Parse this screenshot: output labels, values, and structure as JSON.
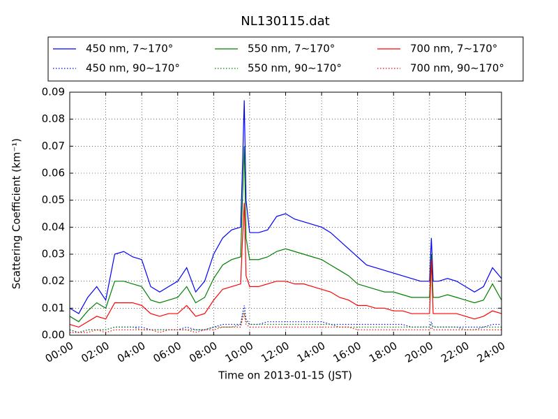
{
  "chart_data": {
    "type": "line",
    "title": "NL130115.dat",
    "x_label": "Time on 2013-01-15 (JST)",
    "y_label": "Scattering Coefficient (km⁻¹)",
    "x": [
      0,
      0.5,
      1,
      1.5,
      2,
      2.5,
      3,
      3.5,
      4,
      4.5,
      5,
      5.5,
      6,
      6.5,
      7,
      7.5,
      8,
      8.5,
      9,
      9.5,
      9.6,
      9.7,
      9.8,
      10,
      10.5,
      11,
      11.5,
      12,
      12.5,
      13,
      13.5,
      14,
      14.5,
      15,
      15.5,
      16,
      16.5,
      17,
      17.5,
      18,
      18.5,
      19,
      19.5,
      20,
      20.1,
      20.2,
      20.5,
      21,
      21.5,
      22,
      22.5,
      23,
      23.5,
      24
    ],
    "xlim": [
      0,
      24
    ],
    "xticks": [
      {
        "value": 0,
        "label": "00:00"
      },
      {
        "value": 2,
        "label": "02:00"
      },
      {
        "value": 4,
        "label": "04:00"
      },
      {
        "value": 6,
        "label": "06:00"
      },
      {
        "value": 8,
        "label": "08:00"
      },
      {
        "value": 10,
        "label": "10:00"
      },
      {
        "value": 12,
        "label": "12:00"
      },
      {
        "value": 14,
        "label": "14:00"
      },
      {
        "value": 16,
        "label": "16:00"
      },
      {
        "value": 18,
        "label": "18:00"
      },
      {
        "value": 20,
        "label": "20:00"
      },
      {
        "value": 22,
        "label": "22:00"
      },
      {
        "value": 24,
        "label": "24:00"
      }
    ],
    "ylim": [
      0,
      0.09
    ],
    "yticks": [
      {
        "value": 0,
        "label": "0.00"
      },
      {
        "value": 0.01,
        "label": "0.01"
      },
      {
        "value": 0.02,
        "label": "0.02"
      },
      {
        "value": 0.03,
        "label": "0.03"
      },
      {
        "value": 0.04,
        "label": "0.04"
      },
      {
        "value": 0.05,
        "label": "0.05"
      },
      {
        "value": 0.06,
        "label": "0.06"
      },
      {
        "value": 0.07,
        "label": "0.07"
      },
      {
        "value": 0.08,
        "label": "0.08"
      },
      {
        "value": 0.09,
        "label": "0.09"
      }
    ],
    "grid": true,
    "legend": "top",
    "series": [
      {
        "name": "450 nm, 7∼170°",
        "color": "#0000ff",
        "linestyle": "solid",
        "values": [
          0.01,
          0.008,
          0.014,
          0.018,
          0.013,
          0.03,
          0.031,
          0.029,
          0.028,
          0.018,
          0.016,
          0.018,
          0.02,
          0.025,
          0.016,
          0.02,
          0.03,
          0.036,
          0.039,
          0.04,
          0.062,
          0.087,
          0.05,
          0.038,
          0.038,
          0.039,
          0.044,
          0.045,
          0.043,
          0.042,
          0.041,
          0.04,
          0.038,
          0.035,
          0.032,
          0.029,
          0.026,
          0.025,
          0.024,
          0.023,
          0.022,
          0.021,
          0.02,
          0.02,
          0.036,
          0.02,
          0.02,
          0.021,
          0.02,
          0.018,
          0.016,
          0.018,
          0.025,
          0.021
        ]
      },
      {
        "name": "450 nm, 90∼170°",
        "color": "#0000ff",
        "linestyle": "dotted",
        "values": [
          0.002,
          0.001,
          0.002,
          0.002,
          0.002,
          0.003,
          0.003,
          0.003,
          0.003,
          0.002,
          0.002,
          0.002,
          0.002,
          0.003,
          0.002,
          0.002,
          0.003,
          0.004,
          0.004,
          0.004,
          0.008,
          0.011,
          0.006,
          0.004,
          0.004,
          0.005,
          0.005,
          0.005,
          0.005,
          0.005,
          0.005,
          0.005,
          0.004,
          0.004,
          0.004,
          0.004,
          0.004,
          0.004,
          0.004,
          0.004,
          0.004,
          0.003,
          0.003,
          0.003,
          0.005,
          0.003,
          0.003,
          0.003,
          0.003,
          0.003,
          0.003,
          0.003,
          0.004,
          0.004
        ]
      },
      {
        "name": "550 nm, 7∼170°",
        "color": "#008000",
        "linestyle": "solid",
        "values": [
          0.007,
          0.005,
          0.009,
          0.012,
          0.01,
          0.02,
          0.02,
          0.019,
          0.018,
          0.013,
          0.012,
          0.013,
          0.014,
          0.018,
          0.012,
          0.014,
          0.021,
          0.026,
          0.028,
          0.029,
          0.05,
          0.07,
          0.036,
          0.028,
          0.028,
          0.029,
          0.031,
          0.032,
          0.031,
          0.03,
          0.029,
          0.028,
          0.026,
          0.024,
          0.022,
          0.019,
          0.018,
          0.017,
          0.016,
          0.016,
          0.015,
          0.014,
          0.014,
          0.014,
          0.03,
          0.014,
          0.014,
          0.015,
          0.014,
          0.013,
          0.012,
          0.013,
          0.019,
          0.013
        ]
      },
      {
        "name": "550 nm, 90∼170°",
        "color": "#008000",
        "linestyle": "dotted",
        "values": [
          0.002,
          0.001,
          0.002,
          0.002,
          0.002,
          0.003,
          0.003,
          0.003,
          0.002,
          0.002,
          0.002,
          0.002,
          0.002,
          0.002,
          0.002,
          0.002,
          0.003,
          0.003,
          0.003,
          0.004,
          0.007,
          0.009,
          0.005,
          0.004,
          0.004,
          0.004,
          0.004,
          0.004,
          0.004,
          0.004,
          0.004,
          0.004,
          0.004,
          0.003,
          0.003,
          0.003,
          0.003,
          0.003,
          0.003,
          0.003,
          0.003,
          0.003,
          0.003,
          0.003,
          0.004,
          0.003,
          0.003,
          0.003,
          0.003,
          0.002,
          0.002,
          0.003,
          0.003,
          0.003
        ]
      },
      {
        "name": "700 nm, 7∼170°",
        "color": "#ff0000",
        "linestyle": "solid",
        "values": [
          0.004,
          0.003,
          0.005,
          0.007,
          0.006,
          0.012,
          0.012,
          0.012,
          0.011,
          0.008,
          0.007,
          0.008,
          0.008,
          0.011,
          0.007,
          0.008,
          0.013,
          0.017,
          0.018,
          0.019,
          0.035,
          0.049,
          0.022,
          0.018,
          0.018,
          0.019,
          0.02,
          0.02,
          0.019,
          0.019,
          0.018,
          0.017,
          0.016,
          0.014,
          0.013,
          0.011,
          0.011,
          0.01,
          0.01,
          0.009,
          0.009,
          0.008,
          0.008,
          0.008,
          0.028,
          0.008,
          0.008,
          0.008,
          0.008,
          0.007,
          0.006,
          0.007,
          0.009,
          0.008
        ]
      },
      {
        "name": "700 nm, 90∼170°",
        "color": "#ff0000",
        "linestyle": "dotted",
        "values": [
          0.001,
          0.001,
          0.001,
          0.002,
          0.001,
          0.002,
          0.002,
          0.002,
          0.002,
          0.002,
          0.001,
          0.002,
          0.002,
          0.002,
          0.001,
          0.002,
          0.002,
          0.003,
          0.003,
          0.003,
          0.006,
          0.008,
          0.004,
          0.003,
          0.003,
          0.003,
          0.003,
          0.003,
          0.003,
          0.003,
          0.003,
          0.003,
          0.003,
          0.003,
          0.003,
          0.002,
          0.002,
          0.002,
          0.002,
          0.002,
          0.002,
          0.002,
          0.002,
          0.002,
          0.003,
          0.002,
          0.002,
          0.002,
          0.002,
          0.002,
          0.002,
          0.002,
          0.002,
          0.002
        ]
      }
    ]
  }
}
